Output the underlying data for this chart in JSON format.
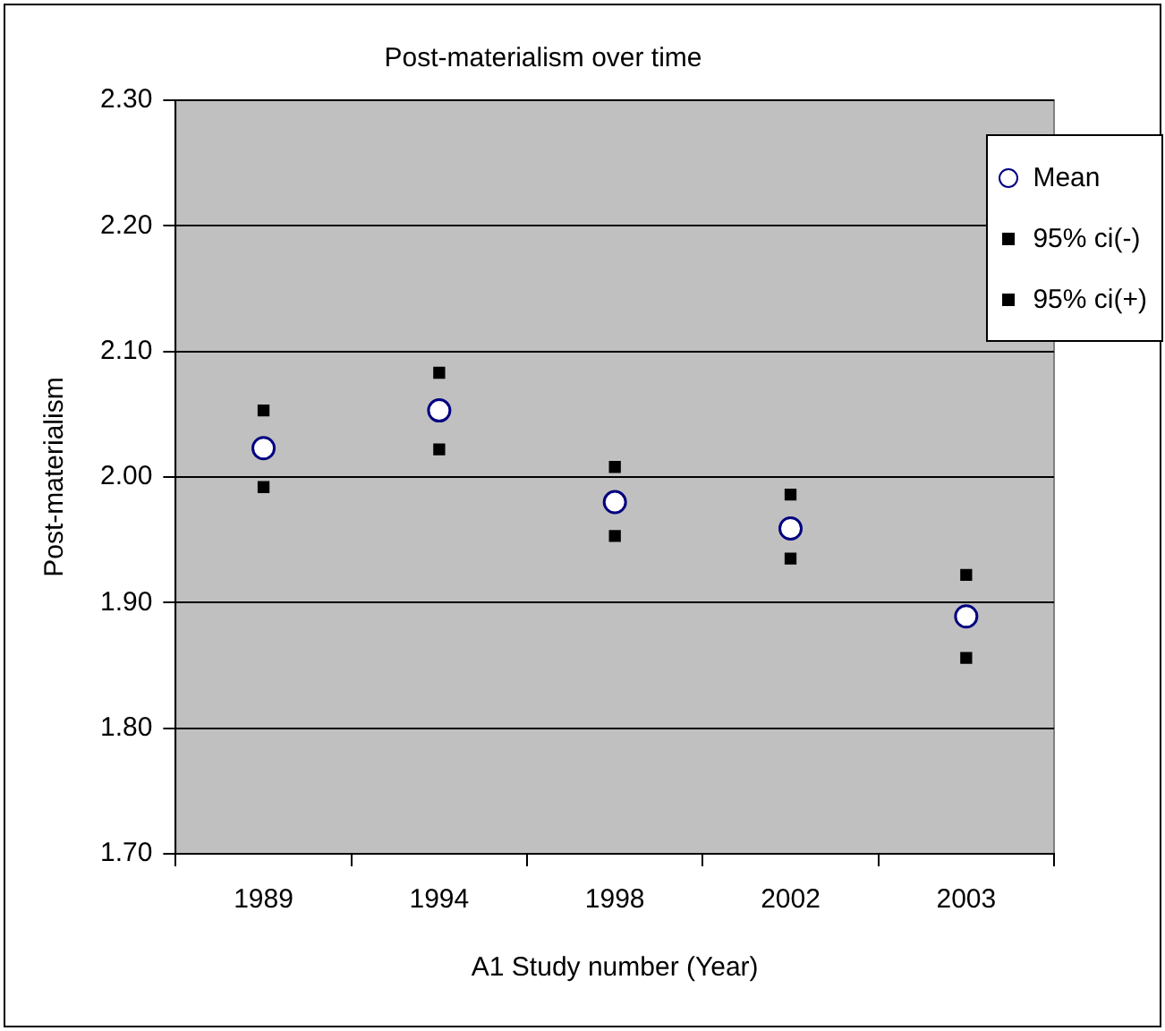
{
  "chart_data": {
    "type": "scatter",
    "title": "Post-materialism over time",
    "xlabel": "A1 Study number (Year)",
    "ylabel": "Post-materialism",
    "categories": [
      "1989",
      "1994",
      "1998",
      "2002",
      "2003"
    ],
    "series": [
      {
        "name": "Mean",
        "color": "#000080",
        "marker": "circle",
        "values": [
          2.023,
          2.053,
          1.98,
          1.959,
          1.889
        ]
      },
      {
        "name": "95% ci(-)",
        "color": "#000000",
        "marker": "square",
        "values": [
          1.992,
          2.022,
          1.953,
          1.935,
          1.856
        ]
      },
      {
        "name": "95% ci(+)",
        "color": "#000000",
        "marker": "square",
        "values": [
          2.053,
          2.083,
          2.008,
          1.986,
          1.922
        ]
      }
    ],
    "ylim": [
      1.7,
      2.3
    ],
    "yticks": [
      {
        "value": 1.7,
        "label": "1.70"
      },
      {
        "value": 1.8,
        "label": "1.80"
      },
      {
        "value": 1.9,
        "label": "1.90"
      },
      {
        "value": 2.0,
        "label": "2.00"
      },
      {
        "value": 2.1,
        "label": "2.10"
      },
      {
        "value": 2.2,
        "label": "2.20"
      },
      {
        "value": 2.3,
        "label": "2.30"
      }
    ],
    "grid": "y",
    "legend": "top right"
  }
}
